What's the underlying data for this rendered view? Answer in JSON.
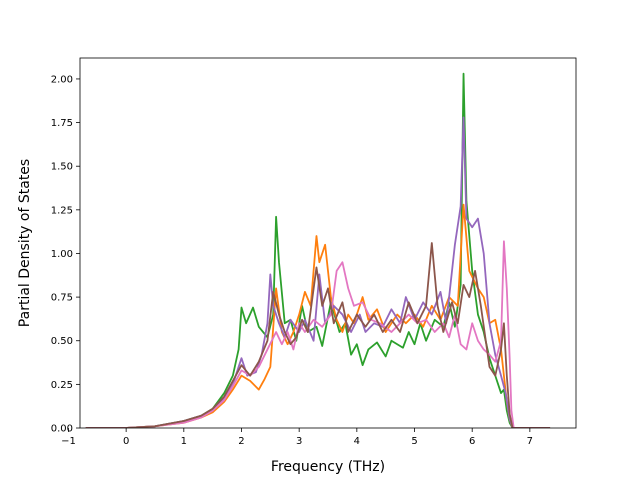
{
  "chart_data": {
    "type": "line",
    "title": "",
    "xlabel": "Frequency (THz)",
    "ylabel": "Partial Density of States",
    "xlim": [
      -0.8,
      7.8
    ],
    "ylim": [
      0.0,
      2.12
    ],
    "xticks": [
      -1,
      0,
      1,
      2,
      3,
      4,
      5,
      6,
      7
    ],
    "xtick_labels": [
      "−1",
      "0",
      "1",
      "2",
      "3",
      "4",
      "5",
      "6",
      "7"
    ],
    "yticks": [
      0.0,
      0.25,
      0.5,
      0.75,
      1.0,
      1.25,
      1.5,
      1.75,
      2.0
    ],
    "ytick_labels": [
      "0.00",
      "0.25",
      "0.50",
      "0.75",
      "1.00",
      "1.25",
      "1.50",
      "1.75",
      "2.00"
    ],
    "grid": false,
    "legend": "none",
    "series": [
      {
        "color": "#2ca02c",
        "points": [
          [
            -0.7,
            0
          ],
          [
            0,
            0
          ],
          [
            0.5,
            0.01
          ],
          [
            1.0,
            0.04
          ],
          [
            1.3,
            0.07
          ],
          [
            1.5,
            0.11
          ],
          [
            1.7,
            0.2
          ],
          [
            1.85,
            0.3
          ],
          [
            1.95,
            0.45
          ],
          [
            2.0,
            0.69
          ],
          [
            2.08,
            0.6
          ],
          [
            2.2,
            0.69
          ],
          [
            2.3,
            0.58
          ],
          [
            2.45,
            0.52
          ],
          [
            2.55,
            0.65
          ],
          [
            2.6,
            1.21
          ],
          [
            2.65,
            0.95
          ],
          [
            2.75,
            0.6
          ],
          [
            2.85,
            0.62
          ],
          [
            2.95,
            0.5
          ],
          [
            3.05,
            0.7
          ],
          [
            3.15,
            0.55
          ],
          [
            3.3,
            0.58
          ],
          [
            3.4,
            0.47
          ],
          [
            3.55,
            0.72
          ],
          [
            3.7,
            0.55
          ],
          [
            3.8,
            0.6
          ],
          [
            3.9,
            0.42
          ],
          [
            4.0,
            0.48
          ],
          [
            4.1,
            0.36
          ],
          [
            4.2,
            0.45
          ],
          [
            4.35,
            0.49
          ],
          [
            4.5,
            0.41
          ],
          [
            4.6,
            0.5
          ],
          [
            4.8,
            0.46
          ],
          [
            4.9,
            0.55
          ],
          [
            5.0,
            0.48
          ],
          [
            5.1,
            0.6
          ],
          [
            5.2,
            0.5
          ],
          [
            5.35,
            0.62
          ],
          [
            5.5,
            0.58
          ],
          [
            5.6,
            0.72
          ],
          [
            5.7,
            0.58
          ],
          [
            5.8,
            0.82
          ],
          [
            5.85,
            2.03
          ],
          [
            5.9,
            1.3
          ],
          [
            6.0,
            0.9
          ],
          [
            6.1,
            0.65
          ],
          [
            6.2,
            0.55
          ],
          [
            6.3,
            0.4
          ],
          [
            6.4,
            0.3
          ],
          [
            6.5,
            0.2
          ],
          [
            6.55,
            0.22
          ],
          [
            6.6,
            0.1
          ],
          [
            6.65,
            0.03
          ],
          [
            6.7,
            0
          ],
          [
            7.35,
            0
          ]
        ]
      },
      {
        "color": "#ff7f0e",
        "points": [
          [
            -0.7,
            0
          ],
          [
            0,
            0
          ],
          [
            0.5,
            0.01
          ],
          [
            1.0,
            0.03
          ],
          [
            1.3,
            0.06
          ],
          [
            1.5,
            0.09
          ],
          [
            1.7,
            0.15
          ],
          [
            1.85,
            0.22
          ],
          [
            2.0,
            0.3
          ],
          [
            2.15,
            0.27
          ],
          [
            2.3,
            0.22
          ],
          [
            2.4,
            0.28
          ],
          [
            2.5,
            0.35
          ],
          [
            2.6,
            0.8
          ],
          [
            2.7,
            0.55
          ],
          [
            2.8,
            0.48
          ],
          [
            2.9,
            0.55
          ],
          [
            3.0,
            0.65
          ],
          [
            3.1,
            0.78
          ],
          [
            3.2,
            0.7
          ],
          [
            3.3,
            1.1
          ],
          [
            3.35,
            0.95
          ],
          [
            3.45,
            1.05
          ],
          [
            3.55,
            0.75
          ],
          [
            3.65,
            0.62
          ],
          [
            3.75,
            0.55
          ],
          [
            3.85,
            0.65
          ],
          [
            3.95,
            0.6
          ],
          [
            4.1,
            0.75
          ],
          [
            4.2,
            0.62
          ],
          [
            4.35,
            0.68
          ],
          [
            4.5,
            0.55
          ],
          [
            4.7,
            0.65
          ],
          [
            4.85,
            0.6
          ],
          [
            5.0,
            0.65
          ],
          [
            5.15,
            0.58
          ],
          [
            5.3,
            0.7
          ],
          [
            5.45,
            0.62
          ],
          [
            5.6,
            0.75
          ],
          [
            5.75,
            0.7
          ],
          [
            5.85,
            1.28
          ],
          [
            5.95,
            0.9
          ],
          [
            6.1,
            0.8
          ],
          [
            6.2,
            0.75
          ],
          [
            6.3,
            0.6
          ],
          [
            6.4,
            0.62
          ],
          [
            6.5,
            0.45
          ],
          [
            6.55,
            0.3
          ],
          [
            6.6,
            0.15
          ],
          [
            6.65,
            0.05
          ],
          [
            6.7,
            0
          ],
          [
            7.35,
            0
          ]
        ]
      },
      {
        "color": "#9467bd",
        "points": [
          [
            -0.7,
            0
          ],
          [
            0,
            0
          ],
          [
            0.5,
            0.01
          ],
          [
            1.0,
            0.04
          ],
          [
            1.3,
            0.07
          ],
          [
            1.5,
            0.1
          ],
          [
            1.7,
            0.17
          ],
          [
            1.85,
            0.25
          ],
          [
            2.0,
            0.4
          ],
          [
            2.1,
            0.3
          ],
          [
            2.25,
            0.32
          ],
          [
            2.35,
            0.42
          ],
          [
            2.45,
            0.6
          ],
          [
            2.5,
            0.88
          ],
          [
            2.55,
            0.7
          ],
          [
            2.65,
            0.6
          ],
          [
            2.75,
            0.52
          ],
          [
            2.85,
            0.62
          ],
          [
            3.0,
            0.55
          ],
          [
            3.1,
            0.62
          ],
          [
            3.25,
            0.5
          ],
          [
            3.35,
            0.88
          ],
          [
            3.45,
            0.6
          ],
          [
            3.6,
            0.7
          ],
          [
            3.75,
            0.65
          ],
          [
            3.9,
            0.55
          ],
          [
            4.05,
            0.65
          ],
          [
            4.15,
            0.55
          ],
          [
            4.3,
            0.6
          ],
          [
            4.45,
            0.58
          ],
          [
            4.6,
            0.68
          ],
          [
            4.75,
            0.6
          ],
          [
            4.85,
            0.75
          ],
          [
            5.0,
            0.62
          ],
          [
            5.15,
            0.72
          ],
          [
            5.3,
            0.65
          ],
          [
            5.45,
            0.78
          ],
          [
            5.55,
            0.6
          ],
          [
            5.65,
            0.9
          ],
          [
            5.7,
            1.05
          ],
          [
            5.8,
            1.27
          ],
          [
            5.85,
            1.78
          ],
          [
            5.9,
            1.2
          ],
          [
            6.0,
            1.15
          ],
          [
            6.1,
            1.2
          ],
          [
            6.2,
            1.0
          ],
          [
            6.3,
            0.6
          ],
          [
            6.4,
            0.42
          ],
          [
            6.5,
            0.3
          ],
          [
            6.58,
            0.2
          ],
          [
            6.65,
            0.05
          ],
          [
            6.7,
            0
          ],
          [
            7.35,
            0
          ]
        ]
      },
      {
        "color": "#e377c2",
        "points": [
          [
            -0.7,
            0
          ],
          [
            0,
            0
          ],
          [
            0.5,
            0.01
          ],
          [
            1.0,
            0.03
          ],
          [
            1.3,
            0.06
          ],
          [
            1.5,
            0.1
          ],
          [
            1.7,
            0.16
          ],
          [
            1.85,
            0.24
          ],
          [
            2.0,
            0.33
          ],
          [
            2.15,
            0.3
          ],
          [
            2.3,
            0.35
          ],
          [
            2.45,
            0.45
          ],
          [
            2.6,
            0.55
          ],
          [
            2.7,
            0.48
          ],
          [
            2.8,
            0.55
          ],
          [
            2.9,
            0.45
          ],
          [
            3.0,
            0.6
          ],
          [
            3.1,
            0.55
          ],
          [
            3.25,
            0.62
          ],
          [
            3.4,
            0.58
          ],
          [
            3.55,
            0.65
          ],
          [
            3.65,
            0.9
          ],
          [
            3.75,
            0.95
          ],
          [
            3.85,
            0.8
          ],
          [
            3.95,
            0.7
          ],
          [
            4.1,
            0.72
          ],
          [
            4.25,
            0.62
          ],
          [
            4.4,
            0.6
          ],
          [
            4.6,
            0.55
          ],
          [
            4.75,
            0.6
          ],
          [
            4.9,
            0.65
          ],
          [
            5.05,
            0.6
          ],
          [
            5.2,
            0.62
          ],
          [
            5.35,
            0.55
          ],
          [
            5.5,
            0.6
          ],
          [
            5.6,
            0.52
          ],
          [
            5.7,
            0.65
          ],
          [
            5.8,
            0.48
          ],
          [
            5.9,
            0.45
          ],
          [
            6.0,
            0.6
          ],
          [
            6.1,
            0.5
          ],
          [
            6.2,
            0.45
          ],
          [
            6.3,
            0.42
          ],
          [
            6.4,
            0.38
          ],
          [
            6.5,
            0.5
          ],
          [
            6.55,
            1.07
          ],
          [
            6.6,
            0.8
          ],
          [
            6.65,
            0.4
          ],
          [
            6.68,
            0.1
          ],
          [
            6.72,
            0
          ],
          [
            7.35,
            0
          ]
        ]
      },
      {
        "color": "#8c564b",
        "points": [
          [
            -0.7,
            0
          ],
          [
            0,
            0
          ],
          [
            0.5,
            0.01
          ],
          [
            1.0,
            0.04
          ],
          [
            1.3,
            0.07
          ],
          [
            1.5,
            0.11
          ],
          [
            1.7,
            0.18
          ],
          [
            1.85,
            0.27
          ],
          [
            2.0,
            0.36
          ],
          [
            2.15,
            0.3
          ],
          [
            2.3,
            0.38
          ],
          [
            2.45,
            0.5
          ],
          [
            2.55,
            0.78
          ],
          [
            2.65,
            0.65
          ],
          [
            2.75,
            0.55
          ],
          [
            2.85,
            0.48
          ],
          [
            2.95,
            0.52
          ],
          [
            3.05,
            0.62
          ],
          [
            3.15,
            0.55
          ],
          [
            3.3,
            0.92
          ],
          [
            3.4,
            0.7
          ],
          [
            3.5,
            0.8
          ],
          [
            3.6,
            0.6
          ],
          [
            3.75,
            0.72
          ],
          [
            3.85,
            0.55
          ],
          [
            4.0,
            0.65
          ],
          [
            4.15,
            0.58
          ],
          [
            4.3,
            0.65
          ],
          [
            4.45,
            0.55
          ],
          [
            4.6,
            0.62
          ],
          [
            4.75,
            0.55
          ],
          [
            4.9,
            0.72
          ],
          [
            5.05,
            0.6
          ],
          [
            5.2,
            0.7
          ],
          [
            5.3,
            1.06
          ],
          [
            5.4,
            0.7
          ],
          [
            5.5,
            0.55
          ],
          [
            5.65,
            0.72
          ],
          [
            5.75,
            0.6
          ],
          [
            5.85,
            0.82
          ],
          [
            5.95,
            0.75
          ],
          [
            6.05,
            0.9
          ],
          [
            6.15,
            0.7
          ],
          [
            6.3,
            0.35
          ],
          [
            6.4,
            0.3
          ],
          [
            6.5,
            0.45
          ],
          [
            6.55,
            0.6
          ],
          [
            6.6,
            0.3
          ],
          [
            6.65,
            0.08
          ],
          [
            6.7,
            0
          ],
          [
            7.35,
            0
          ]
        ]
      }
    ]
  }
}
